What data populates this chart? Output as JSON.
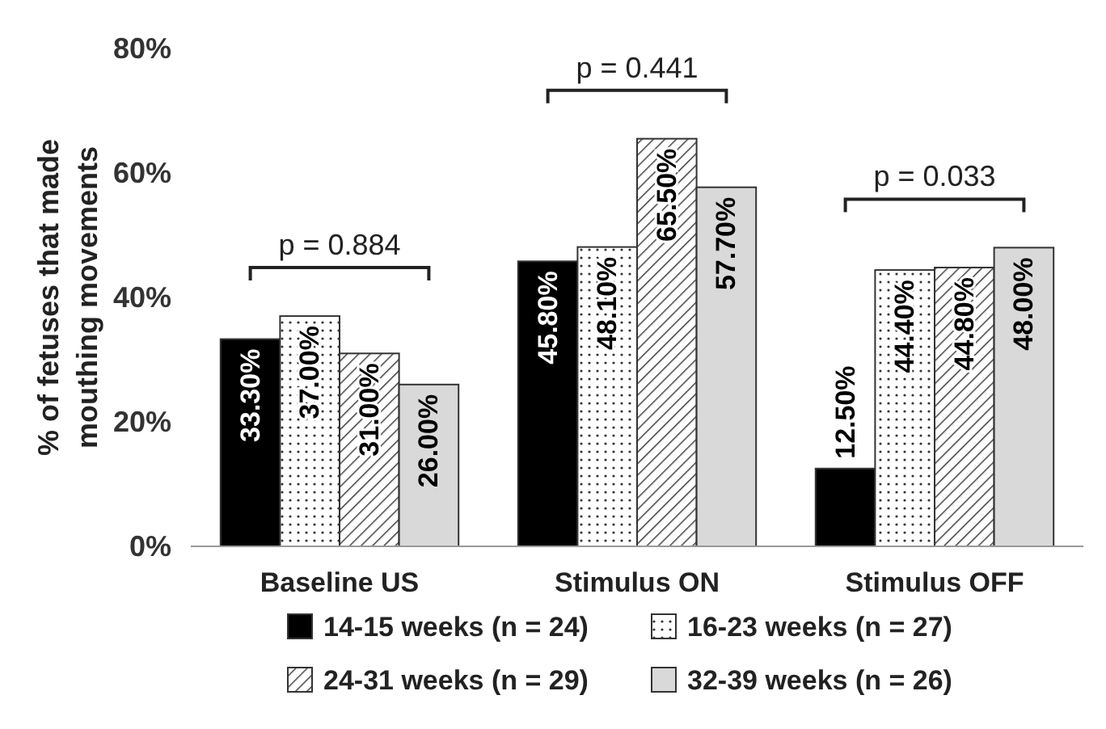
{
  "chart_data": {
    "type": "bar",
    "ylabel": "% of fetuses that made mouthing movements",
    "categories": [
      "Baseline US",
      "Stimulus ON",
      "Stimulus OFF"
    ],
    "series": [
      {
        "name": "14-15 weeks (n = 24)",
        "color": "#000000",
        "values": [
          33.3,
          45.8,
          12.5
        ],
        "value_labels": [
          "33.30%",
          "45.80%",
          "12.50%"
        ]
      },
      {
        "name": "16-23 weeks (n = 27)",
        "color": "#333333",
        "values": [
          37,
          48.1,
          44.4
        ],
        "value_labels": [
          "37.00%",
          "48.10%",
          "44.40%"
        ]
      },
      {
        "name": "24-31 weeks (n = 29)",
        "color": "#333333",
        "values": [
          31,
          65.5,
          44.8
        ],
        "value_labels": [
          "31.00%",
          "65.50%",
          "44.80%"
        ]
      },
      {
        "name": "32-39 weeks (n = 26)",
        "color": "#d9d9d9",
        "values": [
          26,
          57.7,
          48
        ],
        "value_labels": [
          "26.00%",
          "57.70%",
          "48.00%"
        ]
      }
    ],
    "ylim": [
      0,
      80
    ],
    "yticks": [
      {
        "value": 0,
        "label": "0%"
      },
      {
        "value": 20,
        "label": "20%"
      },
      {
        "value": 40,
        "label": "40%"
      },
      {
        "value": 60,
        "label": "60%"
      },
      {
        "value": 80,
        "label": "80%"
      }
    ],
    "grid": false,
    "legend": "bottom",
    "annotations": [
      "p = 0.884",
      "p = 0.441",
      "p = 0.033"
    ]
  }
}
